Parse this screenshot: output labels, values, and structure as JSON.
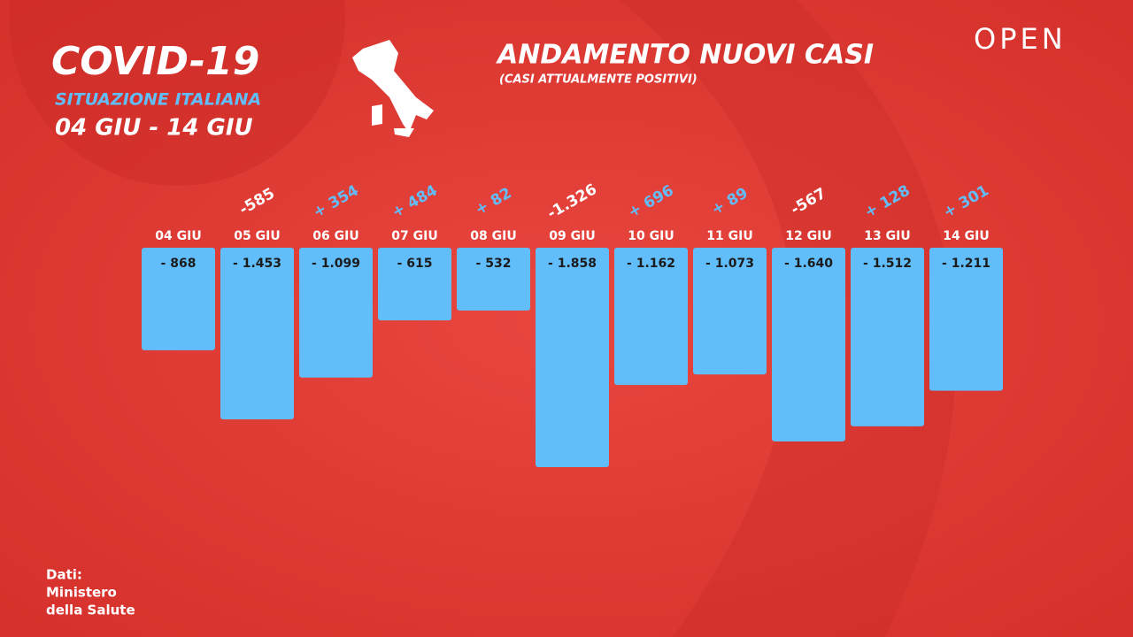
{
  "header": {
    "title": "COVID-19",
    "subtitle": "SITUAZIONE ITALIANA",
    "period": "04 GIU - 14 GIU"
  },
  "logo": "OPEN",
  "source": [
    "Dati:",
    "Ministero",
    "della Salute"
  ],
  "chart_data": {
    "type": "bar",
    "title": "ANDAMENTO NUOVI CASI",
    "subtitle": "(CASI ATTUALMENTE POSITIVI)",
    "categories": [
      "04 GIU",
      "05 GIU",
      "06 GIU",
      "07 GIU",
      "08 GIU",
      "09 GIU",
      "10 GIU",
      "11 GIU",
      "12 GIU",
      "13 GIU",
      "14 GIU"
    ],
    "values": [
      -868,
      -1453,
      -1099,
      -615,
      -532,
      -1858,
      -1162,
      -1073,
      -1640,
      -1512,
      -1211
    ],
    "value_labels": [
      "- 868",
      "- 1.453",
      "- 1.099",
      "- 615",
      "- 532",
      "- 1.858",
      "- 1.162",
      "- 1.073",
      "- 1.640",
      "- 1.512",
      "- 1.211"
    ],
    "color": "#62bdfb",
    "ylim": [
      -2000,
      0
    ],
    "changes": {
      "values": [
        null,
        -585,
        354,
        484,
        82,
        -1326,
        696,
        89,
        -567,
        128,
        301
      ],
      "value_labels": [
        null,
        "-585",
        "+ 354",
        "+ 484",
        "+ 82",
        "-1.326",
        "+ 696",
        "+ 89",
        "-567",
        "+ 128",
        "+ 301"
      ],
      "positive_color": "#62bdfb",
      "negative_color": "#ffffff"
    }
  }
}
